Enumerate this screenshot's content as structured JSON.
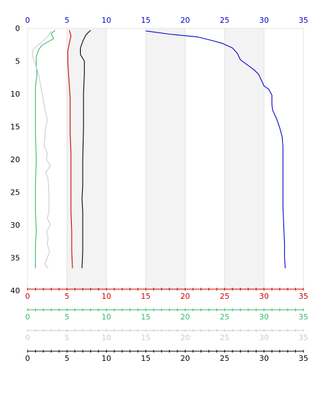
{
  "chart_data": {
    "type": "line",
    "grid": "alternating vertical bands",
    "ylim": [
      0,
      40
    ],
    "y_ticks": [
      "0",
      "5",
      "10",
      "15",
      "20",
      "25",
      "30",
      "35",
      "40"
    ],
    "x_axes": [
      {
        "position": "top",
        "color": "#0000cc",
        "range": [
          0,
          35
        ],
        "ticks": [
          "0",
          "5",
          "10",
          "15",
          "20",
          "25",
          "30",
          "35"
        ]
      },
      {
        "position": "bottom-1",
        "color": "#cc0000",
        "range": [
          0,
          35
        ],
        "ticks": [
          "0",
          "5",
          "10",
          "15",
          "20",
          "25",
          "30",
          "35"
        ]
      },
      {
        "position": "bottom-2",
        "color": "#33bb66",
        "range": [
          0,
          35
        ],
        "ticks": [
          "0",
          "5",
          "10",
          "15",
          "20",
          "25",
          "30",
          "35"
        ]
      },
      {
        "position": "bottom-3",
        "color": "#cccccc",
        "range": [
          0,
          35
        ],
        "ticks": [
          "0",
          "5",
          "10",
          "15",
          "20",
          "25",
          "30",
          "35"
        ]
      },
      {
        "position": "bottom-4",
        "color": "#000000",
        "range": [
          0,
          35
        ],
        "ticks": [
          "0",
          "5",
          "10",
          "15",
          "20",
          "25",
          "30",
          "35"
        ]
      }
    ],
    "series": [
      {
        "color": "#0000cc",
        "points": [
          [
            15.0,
            0.4
          ],
          [
            18.0,
            0.9
          ],
          [
            21.5,
            1.3
          ],
          [
            23.5,
            1.9
          ],
          [
            24.7,
            2.3
          ],
          [
            26.0,
            3.0
          ],
          [
            26.6,
            3.8
          ],
          [
            27.0,
            4.8
          ],
          [
            27.9,
            5.6
          ],
          [
            28.7,
            6.3
          ],
          [
            29.3,
            7.0
          ],
          [
            29.7,
            8.0
          ],
          [
            30.0,
            8.8
          ],
          [
            30.6,
            9.3
          ],
          [
            31.0,
            10.2
          ],
          [
            31.0,
            11.6
          ],
          [
            31.1,
            12.5
          ],
          [
            31.6,
            13.8
          ],
          [
            32.0,
            15.2
          ],
          [
            32.3,
            16.5
          ],
          [
            32.4,
            18.0
          ],
          [
            32.4,
            21.0
          ],
          [
            32.4,
            24.0
          ],
          [
            32.4,
            27.0
          ],
          [
            32.5,
            30.0
          ],
          [
            32.6,
            33.0
          ],
          [
            32.6,
            35.0
          ],
          [
            32.7,
            36.6
          ]
        ]
      },
      {
        "color": "#cc0000",
        "points": [
          [
            5.3,
            0.3
          ],
          [
            5.5,
            1.2
          ],
          [
            5.3,
            2.3
          ],
          [
            5.1,
            3.5
          ],
          [
            5.1,
            5.0
          ],
          [
            5.2,
            7.0
          ],
          [
            5.3,
            8.8
          ],
          [
            5.4,
            10.5
          ],
          [
            5.4,
            13.0
          ],
          [
            5.4,
            16.0
          ],
          [
            5.5,
            19.0
          ],
          [
            5.5,
            22.0
          ],
          [
            5.5,
            25.0
          ],
          [
            5.5,
            28.0
          ],
          [
            5.6,
            31.0
          ],
          [
            5.6,
            34.0
          ],
          [
            5.7,
            36.6
          ]
        ]
      },
      {
        "color": "#000000",
        "points": [
          [
            8.0,
            0.3
          ],
          [
            7.4,
            1.0
          ],
          [
            7.0,
            2.0
          ],
          [
            6.7,
            3.0
          ],
          [
            6.7,
            4.0
          ],
          [
            7.2,
            5.0
          ],
          [
            7.2,
            7.0
          ],
          [
            7.1,
            10.0
          ],
          [
            7.1,
            15.0
          ],
          [
            7.0,
            20.0
          ],
          [
            7.0,
            24.0
          ],
          [
            6.9,
            26.0
          ],
          [
            7.0,
            28.0
          ],
          [
            7.0,
            32.0
          ],
          [
            7.0,
            34.0
          ],
          [
            6.9,
            36.6
          ]
        ]
      },
      {
        "color": "#33bb66",
        "points": [
          [
            3.5,
            0.3
          ],
          [
            3.0,
            0.8
          ],
          [
            3.3,
            1.6
          ],
          [
            1.8,
            2.6
          ],
          [
            1.4,
            3.3
          ],
          [
            1.1,
            4.3
          ],
          [
            1.1,
            5.5
          ],
          [
            1.2,
            7.0
          ],
          [
            1.0,
            9.0
          ],
          [
            1.0,
            12.0
          ],
          [
            1.0,
            16.0
          ],
          [
            1.1,
            20.0
          ],
          [
            1.0,
            24.0
          ],
          [
            1.0,
            28.0
          ],
          [
            1.1,
            31.0
          ],
          [
            1.0,
            33.0
          ],
          [
            1.0,
            36.6
          ]
        ]
      },
      {
        "color": "#cccccc",
        "points": [
          [
            3.0,
            0.4
          ],
          [
            2.6,
            1.2
          ],
          [
            1.7,
            2.2
          ],
          [
            0.9,
            3.0
          ],
          [
            0.6,
            3.5
          ],
          [
            0.7,
            4.5
          ],
          [
            1.0,
            5.5
          ],
          [
            1.4,
            7.0
          ],
          [
            1.7,
            9.0
          ],
          [
            2.0,
            11.0
          ],
          [
            2.3,
            13.0
          ],
          [
            2.5,
            14.0
          ],
          [
            2.3,
            15.0
          ],
          [
            2.2,
            16.5
          ],
          [
            2.1,
            18.0
          ],
          [
            2.5,
            19.0
          ],
          [
            2.4,
            20.0
          ],
          [
            2.9,
            21.0
          ],
          [
            2.3,
            22.0
          ],
          [
            2.6,
            23.0
          ],
          [
            2.7,
            25.0
          ],
          [
            2.7,
            28.0
          ],
          [
            2.5,
            29.0
          ],
          [
            2.9,
            30.0
          ],
          [
            2.4,
            31.0
          ],
          [
            2.6,
            32.0
          ],
          [
            2.5,
            33.0
          ],
          [
            2.8,
            34.0
          ],
          [
            2.5,
            35.0
          ],
          [
            2.2,
            36.0
          ],
          [
            2.6,
            36.6
          ]
        ]
      }
    ]
  }
}
